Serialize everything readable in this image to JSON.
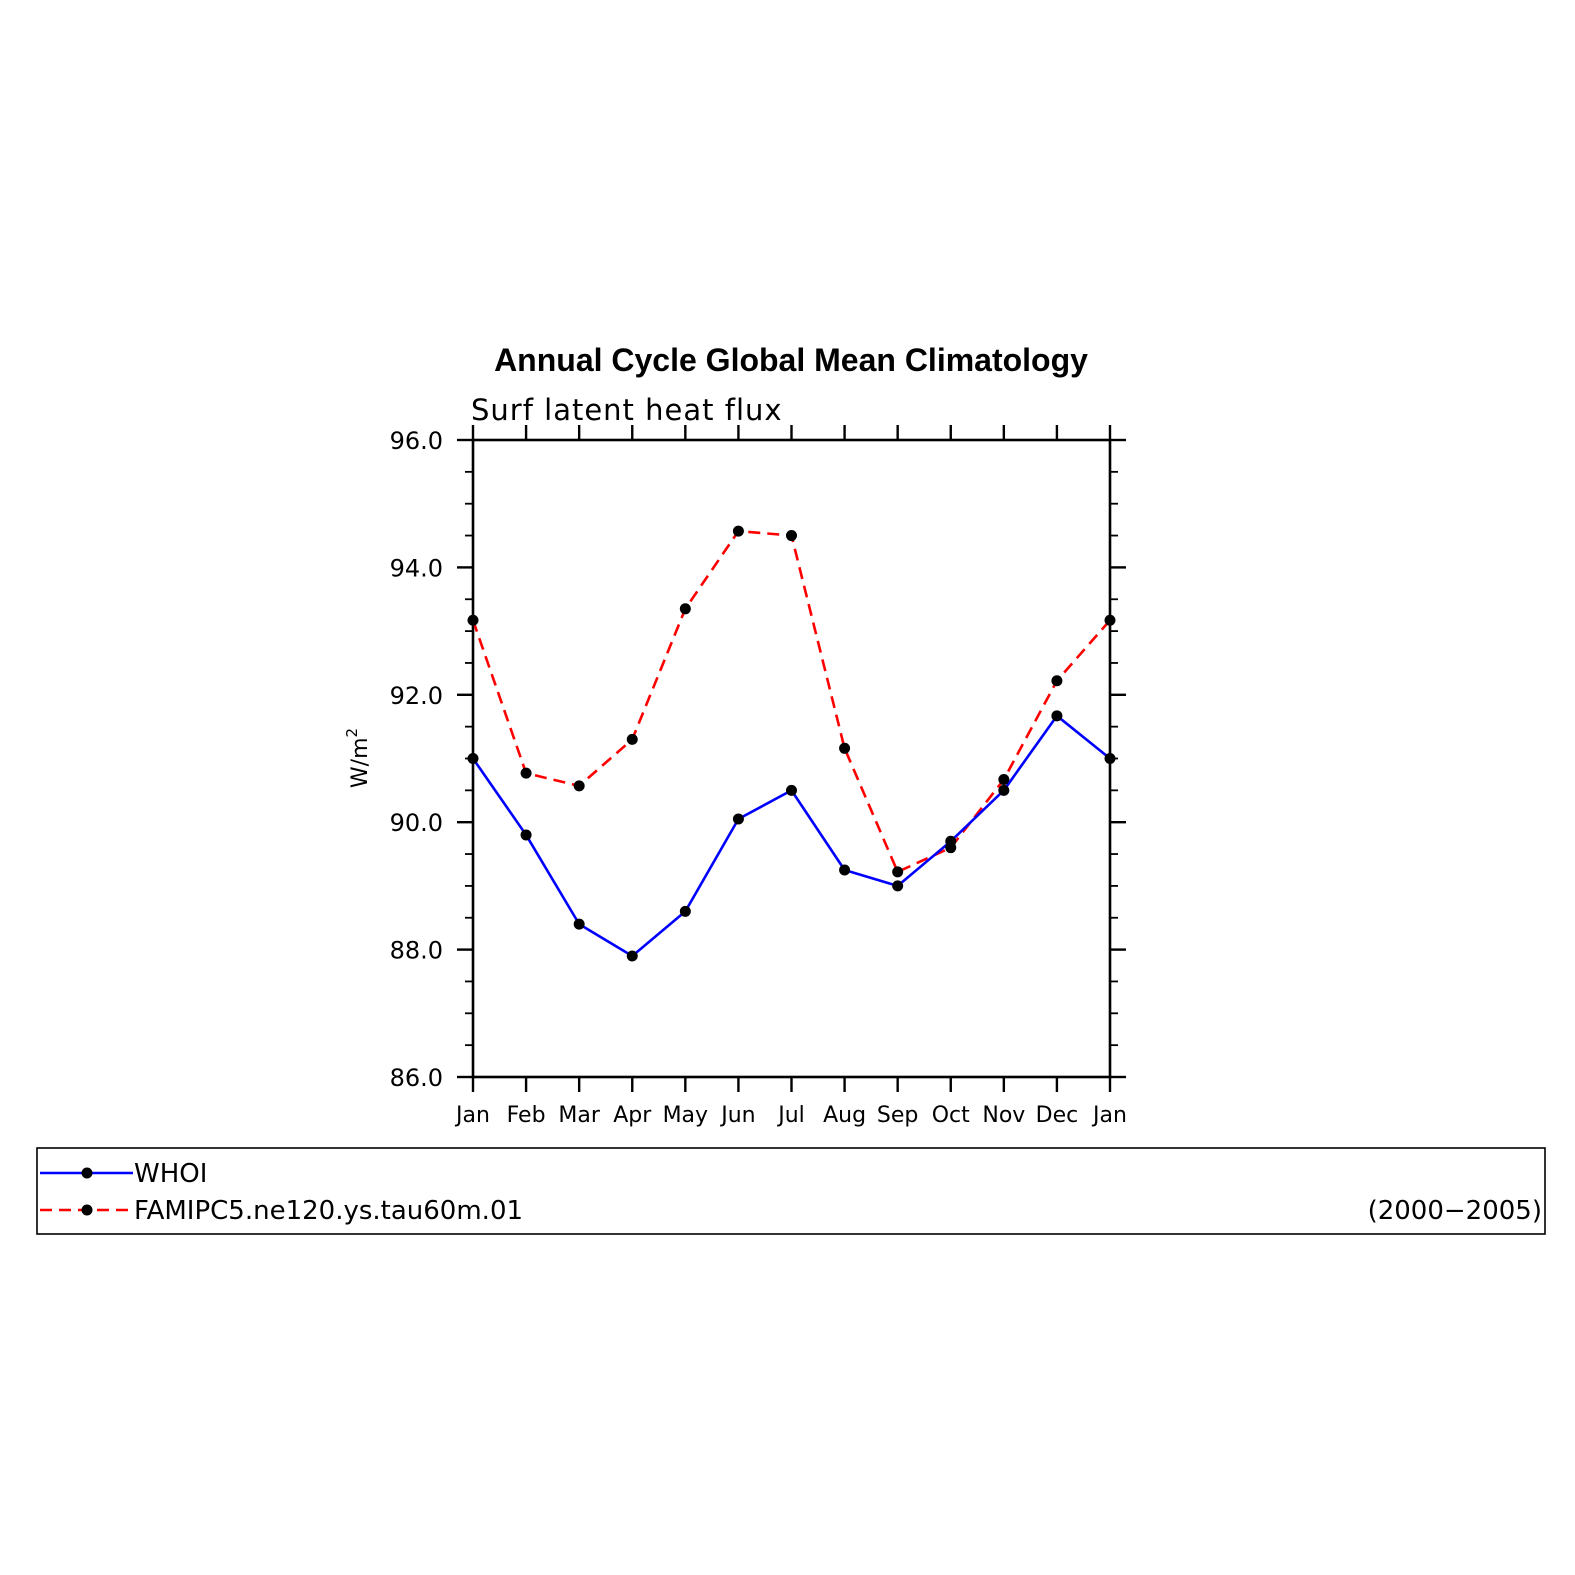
{
  "chart_data": {
    "type": "line",
    "title": "Annual Cycle Global Mean Climatology",
    "subtitle": "Surf latent heat flux",
    "ylabel_base": "W/m",
    "ylabel_sup": "2",
    "categories": [
      "Jan",
      "Feb",
      "Mar",
      "Apr",
      "May",
      "Jun",
      "Jul",
      "Aug",
      "Sep",
      "Oct",
      "Nov",
      "Dec",
      "Jan"
    ],
    "ylim": [
      86.0,
      96.0
    ],
    "yticks": [
      "86.0",
      "88.0",
      "90.0",
      "92.0",
      "94.0",
      "96.0"
    ],
    "series": [
      {
        "name": "WHOI",
        "color": "#0000ff",
        "dash": "solid",
        "values": [
          91.0,
          89.8,
          88.4,
          87.9,
          88.6,
          90.05,
          90.5,
          89.25,
          89.0,
          89.7,
          90.5,
          91.67,
          91.0
        ]
      },
      {
        "name": "FAMIPC5.ne120.ys.tau60m.01",
        "color": "#ff0000",
        "dash": "dashed",
        "values": [
          93.17,
          90.77,
          90.57,
          91.3,
          93.35,
          94.57,
          94.5,
          91.16,
          89.22,
          89.6,
          90.67,
          92.22,
          93.17
        ]
      }
    ],
    "legend": {
      "placement": "bottom",
      "period": "(2000−2005)"
    },
    "marker_color": "#000000"
  }
}
